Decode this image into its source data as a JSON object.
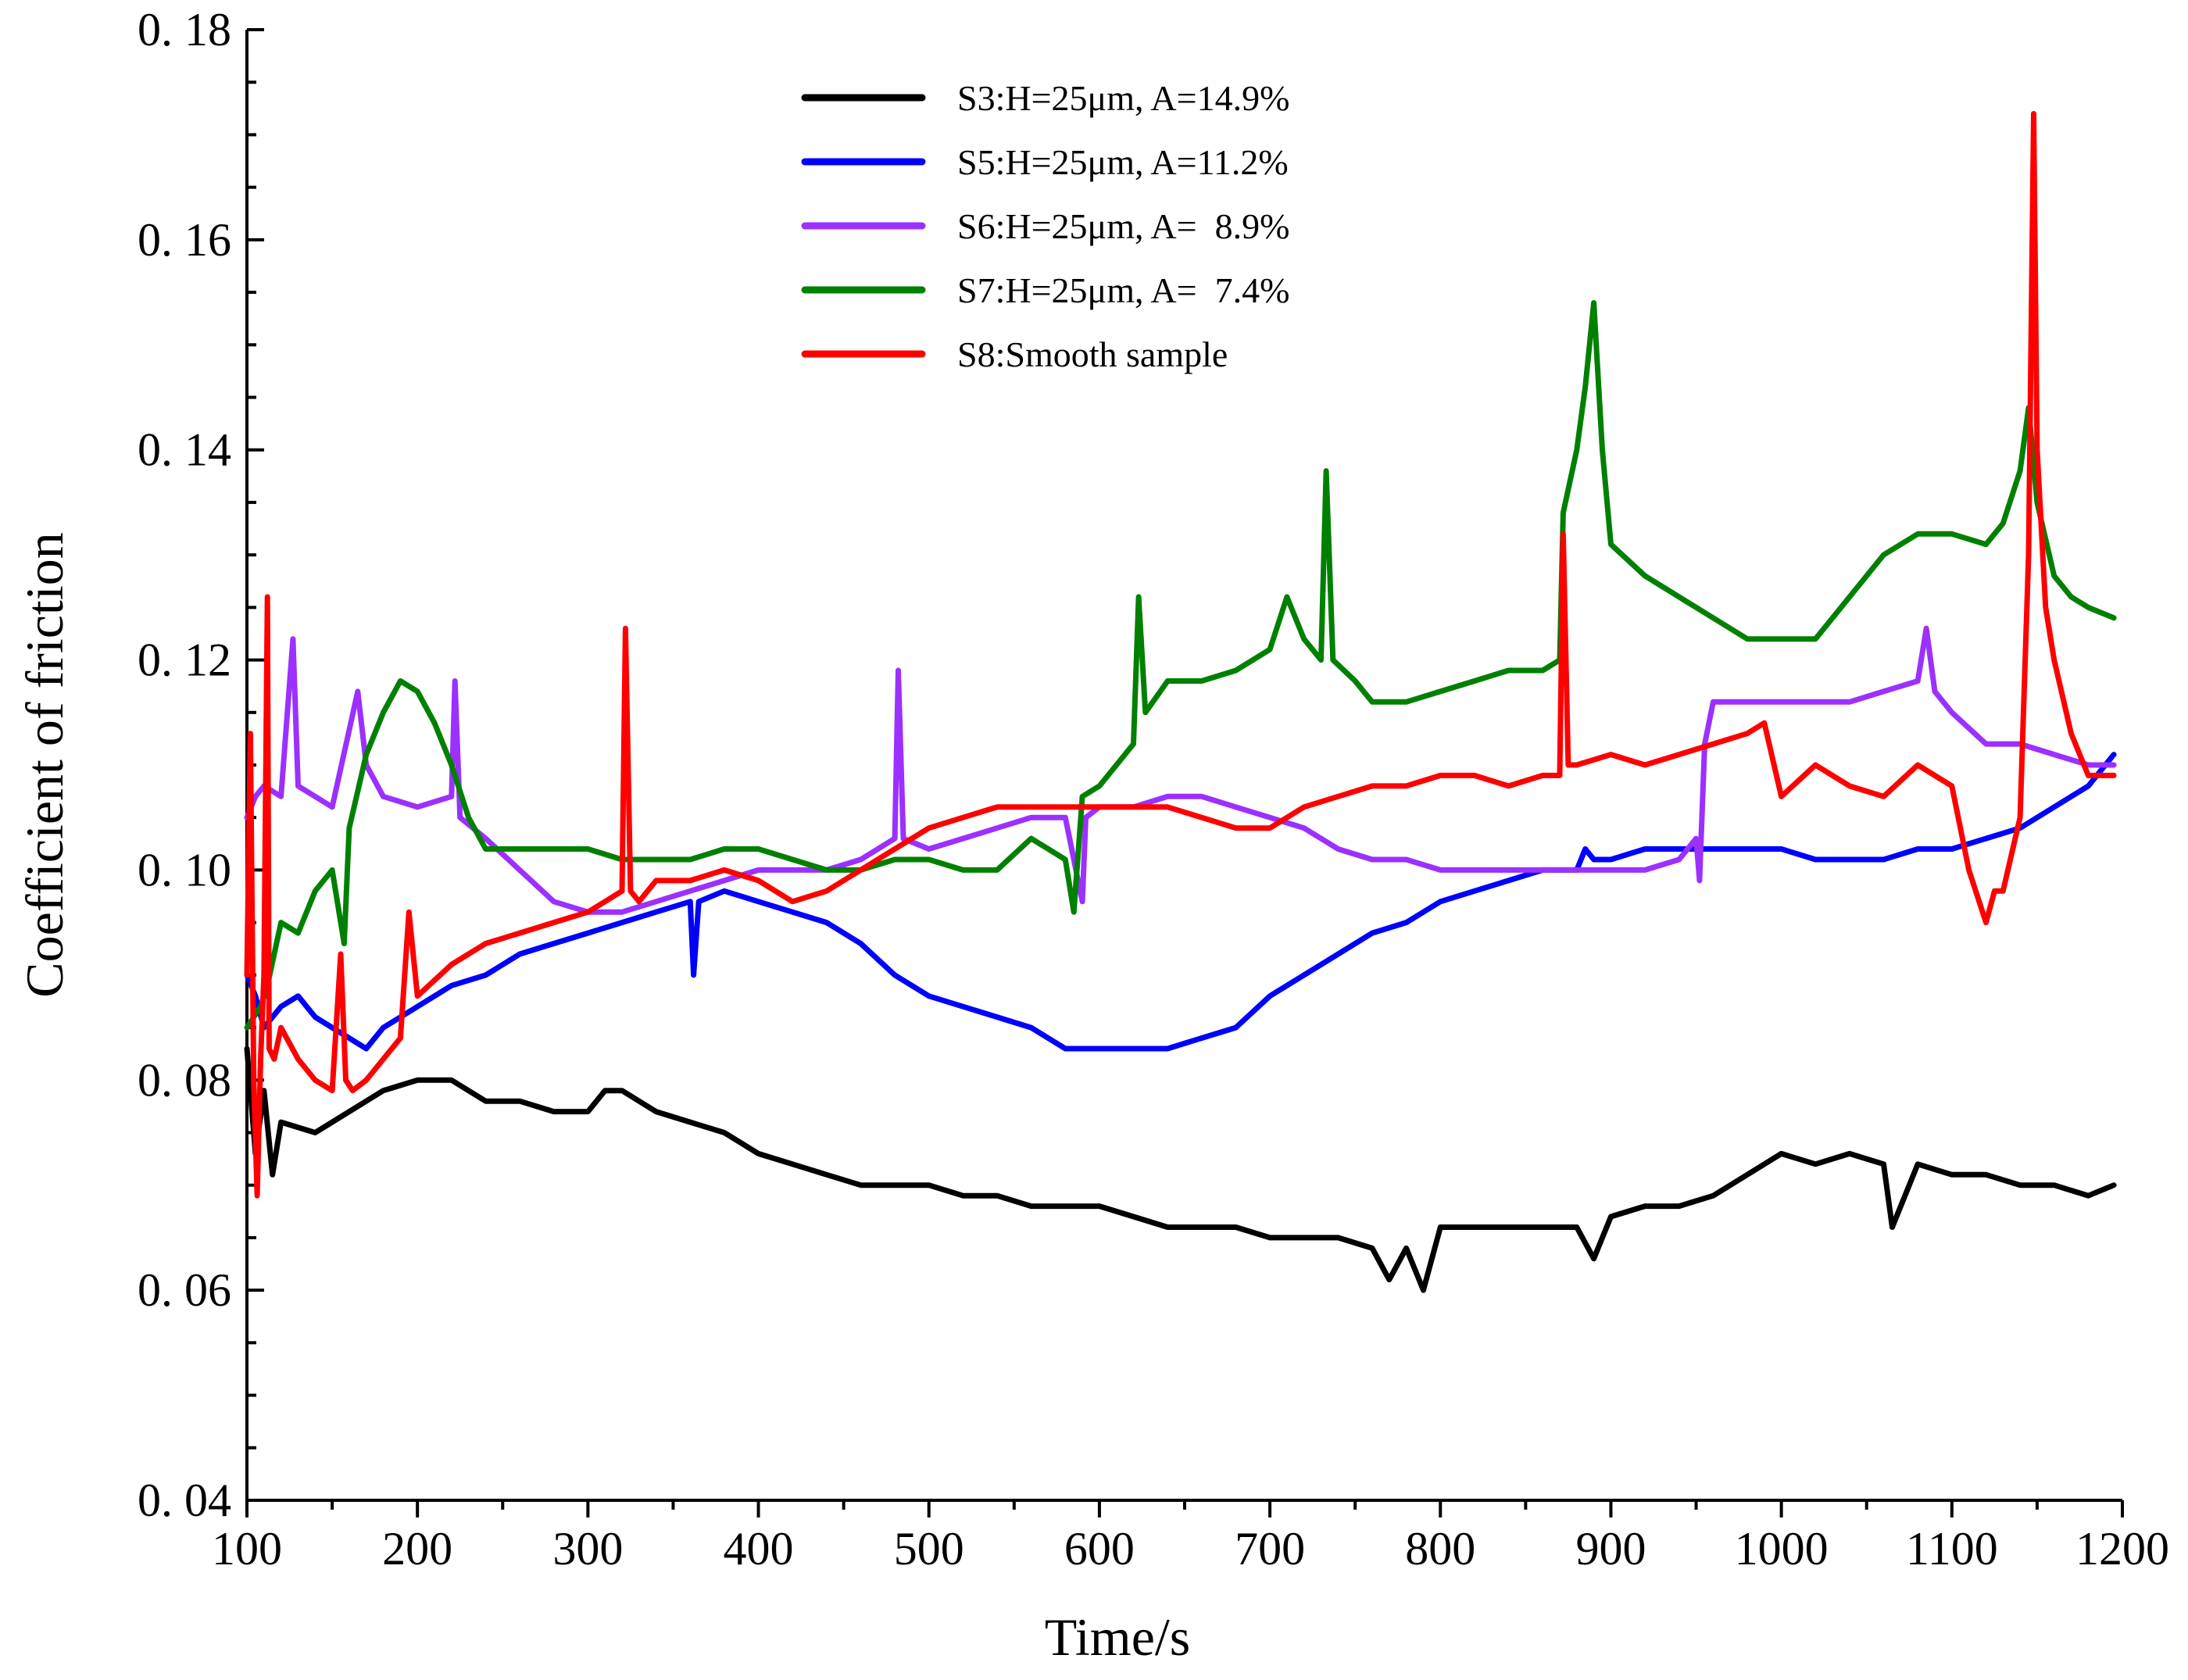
{
  "chart_data": {
    "type": "line",
    "title": "",
    "xlabel": "Time/s",
    "ylabel": "Coefficient of friction",
    "xlim": [
      100,
      1200
    ],
    "ylim": [
      0.04,
      0.18
    ],
    "x_ticks": [
      100,
      200,
      300,
      400,
      500,
      600,
      700,
      800,
      900,
      1000,
      1100,
      1200
    ],
    "y_ticks": [
      0.04,
      0.06,
      0.08,
      0.1,
      0.12,
      0.14,
      0.16,
      0.18
    ],
    "y_tick_labels": [
      "0. 04",
      "0. 06",
      "0. 08",
      "0. 10",
      "0. 12",
      "0. 14",
      "0. 16",
      "0. 18"
    ],
    "legend_position": "top-center",
    "series": [
      {
        "name": "S3:H=25μm, A=14.9%",
        "color": "#000000",
        "x": [
          100,
          105,
          110,
          115,
          120,
          140,
          160,
          180,
          200,
          220,
          240,
          260,
          280,
          300,
          310,
          320,
          340,
          360,
          380,
          400,
          420,
          440,
          460,
          480,
          500,
          520,
          540,
          560,
          580,
          600,
          620,
          640,
          660,
          680,
          700,
          720,
          740,
          760,
          770,
          780,
          790,
          800,
          820,
          840,
          860,
          880,
          890,
          900,
          920,
          940,
          960,
          980,
          1000,
          1020,
          1040,
          1060,
          1065,
          1080,
          1100,
          1120,
          1140,
          1160,
          1180,
          1195
        ],
        "values": [
          0.083,
          0.073,
          0.079,
          0.071,
          0.076,
          0.075,
          0.077,
          0.079,
          0.08,
          0.08,
          0.078,
          0.078,
          0.077,
          0.077,
          0.079,
          0.079,
          0.077,
          0.076,
          0.075,
          0.073,
          0.072,
          0.071,
          0.07,
          0.07,
          0.07,
          0.069,
          0.069,
          0.068,
          0.068,
          0.068,
          0.067,
          0.066,
          0.066,
          0.066,
          0.065,
          0.065,
          0.065,
          0.064,
          0.061,
          0.064,
          0.06,
          0.066,
          0.066,
          0.066,
          0.066,
          0.066,
          0.063,
          0.067,
          0.068,
          0.068,
          0.069,
          0.071,
          0.073,
          0.072,
          0.073,
          0.072,
          0.066,
          0.072,
          0.071,
          0.071,
          0.07,
          0.07,
          0.069,
          0.07
        ]
      },
      {
        "name": "S5:H=25μm, A=11.2%",
        "color": "#0000FF",
        "x": [
          100,
          105,
          110,
          120,
          130,
          140,
          150,
          160,
          170,
          180,
          200,
          220,
          240,
          260,
          280,
          300,
          320,
          340,
          360,
          362,
          365,
          380,
          400,
          420,
          440,
          460,
          480,
          500,
          520,
          540,
          560,
          580,
          600,
          620,
          640,
          660,
          680,
          700,
          720,
          740,
          760,
          780,
          800,
          820,
          840,
          860,
          880,
          885,
          890,
          900,
          920,
          940,
          960,
          980,
          1000,
          1020,
          1040,
          1060,
          1080,
          1100,
          1120,
          1140,
          1160,
          1180,
          1195
        ],
        "values": [
          0.09,
          0.088,
          0.085,
          0.087,
          0.088,
          0.086,
          0.085,
          0.084,
          0.083,
          0.085,
          0.087,
          0.089,
          0.09,
          0.092,
          0.093,
          0.094,
          0.095,
          0.096,
          0.097,
          0.09,
          0.097,
          0.098,
          0.097,
          0.096,
          0.095,
          0.093,
          0.09,
          0.088,
          0.087,
          0.086,
          0.085,
          0.083,
          0.083,
          0.083,
          0.083,
          0.084,
          0.085,
          0.088,
          0.09,
          0.092,
          0.094,
          0.095,
          0.097,
          0.098,
          0.099,
          0.1,
          0.1,
          0.102,
          0.101,
          0.101,
          0.102,
          0.102,
          0.102,
          0.102,
          0.102,
          0.101,
          0.101,
          0.101,
          0.102,
          0.102,
          0.103,
          0.104,
          0.106,
          0.108,
          0.111
        ]
      },
      {
        "name": "S6:H=25μm, A=  8.9%",
        "color": "#9B30FF",
        "x": [
          100,
          105,
          110,
          120,
          127,
          130,
          140,
          150,
          165,
          170,
          180,
          200,
          220,
          222,
          225,
          240,
          260,
          280,
          300,
          320,
          340,
          360,
          380,
          400,
          420,
          440,
          460,
          480,
          482,
          485,
          500,
          520,
          540,
          560,
          580,
          590,
          592,
          600,
          620,
          640,
          660,
          680,
          700,
          720,
          740,
          760,
          780,
          800,
          820,
          840,
          860,
          880,
          900,
          920,
          940,
          950,
          952,
          955,
          960,
          980,
          1000,
          1020,
          1040,
          1060,
          1080,
          1085,
          1090,
          1100,
          1120,
          1140,
          1160,
          1180,
          1195
        ],
        "values": [
          0.105,
          0.107,
          0.108,
          0.107,
          0.122,
          0.108,
          0.107,
          0.106,
          0.117,
          0.11,
          0.107,
          0.106,
          0.107,
          0.118,
          0.105,
          0.103,
          0.1,
          0.097,
          0.096,
          0.096,
          0.097,
          0.098,
          0.099,
          0.1,
          0.1,
          0.1,
          0.101,
          0.103,
          0.119,
          0.103,
          0.102,
          0.103,
          0.104,
          0.105,
          0.105,
          0.097,
          0.105,
          0.106,
          0.106,
          0.107,
          0.107,
          0.106,
          0.105,
          0.104,
          0.102,
          0.101,
          0.101,
          0.1,
          0.1,
          0.1,
          0.1,
          0.1,
          0.1,
          0.1,
          0.101,
          0.103,
          0.099,
          0.112,
          0.116,
          0.116,
          0.116,
          0.116,
          0.116,
          0.117,
          0.118,
          0.123,
          0.117,
          0.115,
          0.112,
          0.112,
          0.111,
          0.11,
          0.11
        ]
      },
      {
        "name": "S7:H=25μm, A=  7.4%",
        "color": "#008000",
        "x": [
          100,
          108,
          112,
          120,
          130,
          140,
          150,
          157,
          160,
          170,
          180,
          190,
          200,
          210,
          220,
          230,
          240,
          260,
          280,
          300,
          320,
          340,
          360,
          380,
          400,
          420,
          440,
          460,
          480,
          500,
          520,
          540,
          560,
          570,
          580,
          585,
          590,
          600,
          620,
          623,
          627,
          640,
          660,
          680,
          700,
          710,
          720,
          730,
          733,
          737,
          750,
          760,
          780,
          800,
          820,
          840,
          860,
          870,
          872,
          880,
          885,
          890,
          895,
          900,
          920,
          940,
          960,
          980,
          1000,
          1020,
          1040,
          1060,
          1080,
          1100,
          1120,
          1130,
          1140,
          1145,
          1150,
          1160,
          1170,
          1180,
          1195
        ],
        "values": [
          0.085,
          0.087,
          0.089,
          0.095,
          0.094,
          0.098,
          0.1,
          0.093,
          0.104,
          0.111,
          0.115,
          0.118,
          0.117,
          0.114,
          0.11,
          0.105,
          0.102,
          0.102,
          0.102,
          0.102,
          0.101,
          0.101,
          0.101,
          0.102,
          0.102,
          0.101,
          0.1,
          0.1,
          0.101,
          0.101,
          0.1,
          0.1,
          0.103,
          0.102,
          0.101,
          0.096,
          0.107,
          0.108,
          0.112,
          0.126,
          0.115,
          0.118,
          0.118,
          0.119,
          0.121,
          0.126,
          0.122,
          0.12,
          0.138,
          0.12,
          0.118,
          0.116,
          0.116,
          0.117,
          0.118,
          0.119,
          0.119,
          0.12,
          0.134,
          0.14,
          0.146,
          0.154,
          0.14,
          0.131,
          0.128,
          0.126,
          0.124,
          0.122,
          0.122,
          0.122,
          0.126,
          0.13,
          0.132,
          0.132,
          0.131,
          0.133,
          0.138,
          0.144,
          0.135,
          0.128,
          0.126,
          0.125,
          0.124
        ]
      },
      {
        "name": "S8:Smooth sample",
        "color": "#FF0000",
        "x": [
          100,
          102,
          104,
          106,
          108,
          110,
          112,
          113,
          116,
          120,
          130,
          140,
          150,
          155,
          158,
          162,
          170,
          180,
          190,
          195,
          200,
          220,
          240,
          260,
          280,
          300,
          310,
          320,
          322,
          325,
          330,
          340,
          360,
          380,
          400,
          420,
          440,
          460,
          480,
          500,
          520,
          540,
          560,
          580,
          600,
          620,
          640,
          660,
          680,
          700,
          720,
          740,
          760,
          780,
          800,
          820,
          840,
          860,
          870,
          872,
          875,
          880,
          900,
          920,
          940,
          960,
          980,
          990,
          1000,
          1020,
          1040,
          1060,
          1080,
          1100,
          1110,
          1120,
          1125,
          1130,
          1140,
          1145,
          1148,
          1150,
          1155,
          1160,
          1170,
          1180,
          1195
        ],
        "values": [
          0.09,
          0.113,
          0.08,
          0.069,
          0.082,
          0.09,
          0.126,
          0.083,
          0.082,
          0.085,
          0.082,
          0.08,
          0.079,
          0.092,
          0.08,
          0.079,
          0.08,
          0.082,
          0.084,
          0.096,
          0.088,
          0.091,
          0.093,
          0.094,
          0.095,
          0.096,
          0.097,
          0.098,
          0.123,
          0.098,
          0.097,
          0.099,
          0.099,
          0.1,
          0.099,
          0.097,
          0.098,
          0.1,
          0.102,
          0.104,
          0.105,
          0.106,
          0.106,
          0.106,
          0.106,
          0.106,
          0.106,
          0.105,
          0.104,
          0.104,
          0.106,
          0.107,
          0.108,
          0.108,
          0.109,
          0.109,
          0.108,
          0.109,
          0.109,
          0.132,
          0.11,
          0.11,
          0.111,
          0.11,
          0.111,
          0.112,
          0.113,
          0.114,
          0.107,
          0.11,
          0.108,
          0.107,
          0.11,
          0.108,
          0.1,
          0.095,
          0.098,
          0.098,
          0.105,
          0.13,
          0.172,
          0.14,
          0.125,
          0.12,
          0.113,
          0.109,
          0.109
        ]
      }
    ]
  }
}
